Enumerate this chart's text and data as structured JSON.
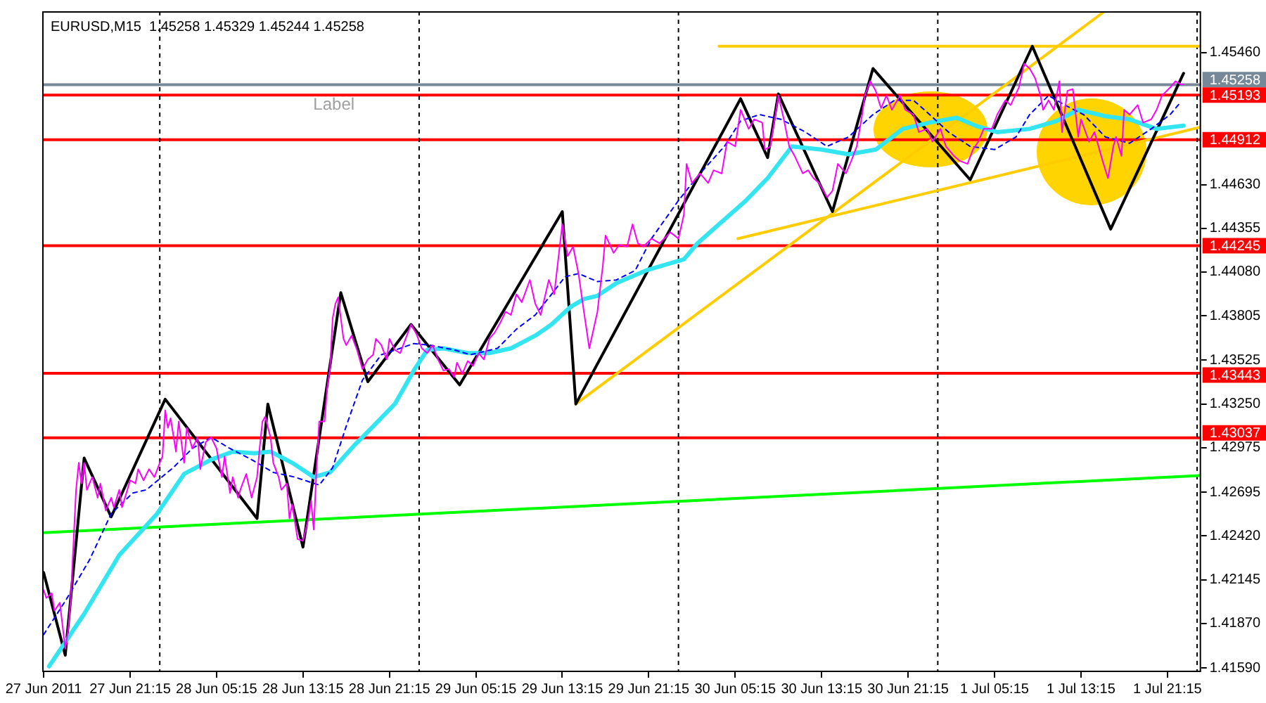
{
  "chart_data": {
    "type": "line",
    "title": "EURUSD,M15  1.45258 1.45329 1.45244 1.45258",
    "annotations": [
      "Label"
    ],
    "xlim": [
      "2011-06-27T13:07",
      "2011-07-02T00:22"
    ],
    "xticks": [
      {
        "value": "2011-06-27T13:15",
        "label": "27 Jun 2011"
      },
      {
        "value": "2011-06-27T21:15",
        "label": "27 Jun 21:15"
      },
      {
        "value": "2011-06-28T05:15",
        "label": "28 Jun 05:15"
      },
      {
        "value": "2011-06-28T13:15",
        "label": "28 Jun 13:15"
      },
      {
        "value": "2011-06-28T21:15",
        "label": "28 Jun 21:15"
      },
      {
        "value": "2011-06-29T05:15",
        "label": "29 Jun 05:15"
      },
      {
        "value": "2011-06-29T13:15",
        "label": "29 Jun 13:15"
      },
      {
        "value": "2011-06-29T21:15",
        "label": "29 Jun 21:15"
      },
      {
        "value": "2011-06-30T05:15",
        "label": "30 Jun 05:15"
      },
      {
        "value": "2011-06-30T13:15",
        "label": "30 Jun 13:15"
      },
      {
        "value": "2011-06-30T21:15",
        "label": "30 Jun 21:15"
      },
      {
        "value": "2011-07-01T05:15",
        "label": "1 Jul 05:15"
      },
      {
        "value": "2011-07-01T13:15",
        "label": "1 Jul 13:15"
      },
      {
        "value": "2011-07-01T21:15",
        "label": "1 Jul 21:15"
      }
    ],
    "ylim": [
      1.41564,
      1.4572
    ],
    "yticks": [
      {
        "value": 1.4546,
        "label": "1.45460"
      },
      {
        "value": 1.4463,
        "label": "1.44630"
      },
      1.44355,
      {
        "value": 1.4408,
        "label": "1.44080"
      },
      1.43805,
      1.43525,
      {
        "value": 1.4325,
        "label": "1.43250"
      },
      1.42975,
      1.42695,
      {
        "value": 1.4242,
        "label": "1.42420"
      },
      1.42145,
      {
        "value": 1.4187,
        "label": "1.41870"
      },
      {
        "value": 1.4159,
        "label": "1.41590"
      }
    ],
    "ref_lines": [
      {
        "axis": "y",
        "value": 1.45258,
        "label": "1.45258",
        "color": "#778899"
      },
      {
        "axis": "y",
        "value": 1.45193,
        "label": "1.45193",
        "color": "#ff0000"
      },
      {
        "axis": "y",
        "value": 1.44912,
        "label": "1.44912",
        "color": "#ff0000"
      },
      {
        "axis": "y",
        "value": 1.44245,
        "label": "1.44245",
        "color": "#ff0000"
      },
      {
        "axis": "y",
        "value": 1.43443,
        "label": "1.43443",
        "color": "#ff0000"
      },
      {
        "axis": "y",
        "value": 1.43037,
        "label": "1.43037",
        "color": "#ff0000"
      },
      {
        "axis": "x",
        "value": "2011-06-28",
        "color": "#000000",
        "line_style": "dashed"
      },
      {
        "axis": "x",
        "value": "2011-06-29",
        "color": "#000000",
        "line_style": "dashed"
      },
      {
        "axis": "x",
        "value": "2011-06-30",
        "color": "#000000",
        "line_style": "dashed"
      },
      {
        "axis": "x",
        "value": "2011-07-01",
        "color": "#000000",
        "line_style": "dashed"
      },
      {
        "axis": "x",
        "value": "2011-07-02",
        "color": "#000000",
        "line_style": "dashed"
      }
    ],
    "series": [
      {
        "color": "#ff00ff",
        "x": [
          "2011-06-27T13:15",
          "2011-06-27T13:30",
          "2011-06-27T14:00",
          "2011-06-27T14:15",
          "2011-06-27T14:45",
          "2011-06-27T15:15",
          "2011-06-27T15:30",
          "2011-06-27T15:45",
          "2011-06-27T16:00",
          "2011-06-27T16:15",
          "2011-06-27T16:30",
          "2011-06-27T16:45",
          "2011-06-27T17:00",
          "2011-06-27T17:15",
          "2011-06-27T17:45",
          "2011-06-27T18:15",
          "2011-06-27T18:30",
          "2011-06-27T19:00",
          "2011-06-27T19:30",
          "2011-06-27T19:45",
          "2011-06-27T20:15",
          "2011-06-27T20:30",
          "2011-06-27T21:00",
          "2011-06-27T21:15",
          "2011-06-27T21:45",
          "2011-06-27T22:00",
          "2011-06-27T22:30",
          "2011-06-27T23:00",
          "2011-06-27T23:30",
          "2011-06-28T00:00",
          "2011-06-28T00:15",
          "2011-06-28T00:30",
          "2011-06-28T00:45",
          "2011-06-28T01:00",
          "2011-06-28T01:30",
          "2011-06-28T01:45",
          "2011-06-28T02:15",
          "2011-06-28T02:30",
          "2011-06-28T03:00",
          "2011-06-28T03:30",
          "2011-06-28T03:45",
          "2011-06-28T04:15",
          "2011-06-28T04:45",
          "2011-06-28T05:15",
          "2011-06-28T05:45",
          "2011-06-28T06:00",
          "2011-06-28T06:30",
          "2011-06-28T06:45",
          "2011-06-28T07:15",
          "2011-06-28T07:30",
          "2011-06-28T08:00",
          "2011-06-28T08:30",
          "2011-06-28T09:00",
          "2011-06-28T09:15",
          "2011-06-28T09:30",
          "2011-06-28T09:45",
          "2011-06-28T10:15",
          "2011-06-28T10:30",
          "2011-06-28T11:00",
          "2011-06-28T11:15",
          "2011-06-28T11:45",
          "2011-06-28T12:00",
          "2011-06-28T12:15",
          "2011-06-28T12:45",
          "2011-06-28T13:15",
          "2011-06-28T13:45",
          "2011-06-28T14:00",
          "2011-06-28T14:15",
          "2011-06-28T14:30",
          "2011-06-28T14:45",
          "2011-06-28T15:15",
          "2011-06-28T15:30",
          "2011-06-28T15:45",
          "2011-06-28T16:00",
          "2011-06-28T16:15",
          "2011-06-28T16:30",
          "2011-06-28T17:00",
          "2011-06-28T17:15",
          "2011-06-28T17:45",
          "2011-06-28T18:15",
          "2011-06-28T18:45",
          "2011-06-28T19:15",
          "2011-06-28T19:45",
          "2011-06-28T20:00",
          "2011-06-28T20:30",
          "2011-06-28T21:00",
          "2011-06-28T21:15",
          "2011-06-28T21:45",
          "2011-06-28T22:15",
          "2011-06-28T22:45",
          "2011-06-28T23:15",
          "2011-06-28T23:45",
          "2011-06-29T00:15",
          "2011-06-29T00:45",
          "2011-06-29T01:15",
          "2011-06-29T01:45",
          "2011-06-29T02:15",
          "2011-06-29T02:45",
          "2011-06-29T03:15",
          "2011-06-29T03:30",
          "2011-06-29T04:00",
          "2011-06-29T04:30",
          "2011-06-29T05:00",
          "2011-06-29T05:30",
          "2011-06-29T06:00",
          "2011-06-29T06:30",
          "2011-06-29T07:00",
          "2011-06-29T07:30",
          "2011-06-29T08:00",
          "2011-06-29T08:30",
          "2011-06-29T09:00",
          "2011-06-29T09:30",
          "2011-06-29T10:15",
          "2011-06-29T10:45",
          "2011-06-29T11:15",
          "2011-06-29T12:00",
          "2011-06-29T12:30",
          "2011-06-29T13:15",
          "2011-06-29T13:45",
          "2011-06-29T14:15",
          "2011-06-29T14:45",
          "2011-06-29T15:15",
          "2011-06-29T15:45",
          "2011-06-29T16:30",
          "2011-06-29T17:00",
          "2011-06-29T17:15",
          "2011-06-29T18:00",
          "2011-06-29T18:30",
          "2011-06-29T19:15",
          "2011-06-29T19:45",
          "2011-06-29T20:15",
          "2011-06-29T20:45",
          "2011-06-29T21:30",
          "2011-06-29T22:15",
          "2011-06-29T23:15",
          "2011-06-30T00:00",
          "2011-06-30T00:30",
          "2011-06-30T00:45",
          "2011-06-30T01:15",
          "2011-06-30T02:00",
          "2011-06-30T02:45",
          "2011-06-30T03:15",
          "2011-06-30T04:00",
          "2011-06-30T04:30",
          "2011-06-30T05:15",
          "2011-06-30T05:45",
          "2011-06-30T06:30",
          "2011-06-30T07:00",
          "2011-06-30T07:45",
          "2011-06-30T08:00",
          "2011-06-30T08:30",
          "2011-06-30T09:15",
          "2011-06-30T09:45",
          "2011-06-30T10:15",
          "2011-06-30T10:45",
          "2011-06-30T11:30",
          "2011-06-30T12:00",
          "2011-06-30T12:30",
          "2011-06-30T13:00",
          "2011-06-30T13:45",
          "2011-06-30T14:15",
          "2011-06-30T14:45",
          "2011-06-30T15:30",
          "2011-06-30T16:00",
          "2011-06-30T16:30",
          "2011-06-30T17:00",
          "2011-06-30T17:15",
          "2011-06-30T17:45",
          "2011-06-30T18:15",
          "2011-06-30T18:45",
          "2011-06-30T19:15",
          "2011-06-30T19:45",
          "2011-06-30T20:30",
          "2011-06-30T21:00",
          "2011-06-30T21:45",
          "2011-06-30T22:15",
          "2011-06-30T23:00",
          "2011-06-30T23:30",
          "2011-07-01T00:15",
          "2011-07-01T00:45",
          "2011-07-01T01:30",
          "2011-07-01T02:00",
          "2011-07-01T02:45",
          "2011-07-01T03:15",
          "2011-07-01T03:45",
          "2011-07-01T04:15",
          "2011-07-01T05:00",
          "2011-07-01T05:30",
          "2011-07-01T06:15",
          "2011-07-01T06:45",
          "2011-07-01T07:30",
          "2011-07-01T08:00",
          "2011-07-01T08:30",
          "2011-07-01T09:00",
          "2011-07-01T09:30",
          "2011-07-01T09:45",
          "2011-07-01T10:15",
          "2011-07-01T10:45",
          "2011-07-01T11:15",
          "2011-07-01T11:30",
          "2011-07-01T12:00",
          "2011-07-01T12:30",
          "2011-07-01T13:00",
          "2011-07-01T13:15",
          "2011-07-01T14:00",
          "2011-07-01T14:30",
          "2011-07-01T15:15",
          "2011-07-01T15:45",
          "2011-07-01T16:15",
          "2011-07-01T16:30",
          "2011-07-01T17:00",
          "2011-07-01T17:15",
          "2011-07-01T17:45",
          "2011-07-01T18:30",
          "2011-07-01T19:00",
          "2011-07-01T19:45",
          "2011-07-01T20:15",
          "2011-07-01T20:45",
          "2011-07-01T21:30",
          "2011-07-01T22:00",
          "2011-07-01T22:30",
          "2011-07-01T22:45"
        ],
        "values": [
          1.4208,
          1.4203,
          1.4206,
          1.4195,
          1.42,
          1.4171,
          1.4182,
          1.4201,
          1.4236,
          1.4271,
          1.4288,
          1.4275,
          1.4288,
          1.4271,
          1.4279,
          1.4266,
          1.4275,
          1.4258,
          1.4266,
          1.426,
          1.4271,
          1.426,
          1.4271,
          1.4277,
          1.4275,
          1.4284,
          1.4277,
          1.4284,
          1.4279,
          1.4288,
          1.4292,
          1.4321,
          1.431,
          1.4316,
          1.4295,
          1.4314,
          1.4288,
          1.431,
          1.4297,
          1.4304,
          1.4284,
          1.4301,
          1.4304,
          1.4297,
          1.4279,
          1.4292,
          1.4269,
          1.4279,
          1.4266,
          1.4272,
          1.4281,
          1.4266,
          1.4279,
          1.4298,
          1.4314,
          1.4317,
          1.4304,
          1.4288,
          1.4279,
          1.4271,
          1.4275,
          1.4253,
          1.4262,
          1.424,
          1.4239,
          1.4253,
          1.4264,
          1.4246,
          1.4284,
          1.4314,
          1.4314,
          1.4336,
          1.4347,
          1.4379,
          1.4388,
          1.4392,
          1.4366,
          1.4362,
          1.4368,
          1.4359,
          1.4347,
          1.4353,
          1.4356,
          1.4366,
          1.4362,
          1.4353,
          1.4366,
          1.4359,
          1.4357,
          1.4366,
          1.4375,
          1.4369,
          1.436,
          1.4357,
          1.4362,
          1.4353,
          1.4346,
          1.4347,
          1.4342,
          1.4351,
          1.4344,
          1.4352,
          1.4349,
          1.4357,
          1.4353,
          1.4366,
          1.437,
          1.4376,
          1.4383,
          1.4381,
          1.4394,
          1.4389,
          1.4403,
          1.4388,
          1.4381,
          1.4403,
          1.4394,
          1.4438,
          1.4418,
          1.4424,
          1.4407,
          1.4383,
          1.436,
          1.4383,
          1.4412,
          1.4431,
          1.442,
          1.4425,
          1.4424,
          1.4438,
          1.4426,
          1.4424,
          1.4429,
          1.4426,
          1.4433,
          1.4429,
          1.4444,
          1.4476,
          1.4464,
          1.447,
          1.4464,
          1.4472,
          1.447,
          1.449,
          1.4487,
          1.451,
          1.4498,
          1.4504,
          1.4502,
          1.4485,
          1.4487,
          1.4519,
          1.4504,
          1.4487,
          1.4481,
          1.447,
          1.4472,
          1.4467,
          1.4464,
          1.4455,
          1.4459,
          1.4476,
          1.447,
          1.4478,
          1.4487,
          1.4507,
          1.4519,
          1.4528,
          1.4522,
          1.4511,
          1.4519,
          1.451,
          1.4519,
          1.451,
          1.4507,
          1.4496,
          1.4498,
          1.449,
          1.4498,
          1.4487,
          1.4481,
          1.4478,
          1.4476,
          1.4485,
          1.449,
          1.4498,
          1.4498,
          1.4507,
          1.4516,
          1.4513,
          1.4524,
          1.4539,
          1.4536,
          1.453,
          1.4519,
          1.451,
          1.4516,
          1.451,
          1.4528,
          1.4496,
          1.4522,
          1.4523,
          1.4493,
          1.4504,
          1.449,
          1.4496,
          1.4478,
          1.4467,
          1.4487,
          1.4493,
          1.4481,
          1.451,
          1.4507,
          1.4513,
          1.4502,
          1.4504,
          1.451,
          1.4519,
          1.4524,
          1.4528,
          1.4526,
          1.4526
        ]
      },
      {
        "color": "#0000ff",
        "line_style": "dashed",
        "x": [
          "2011-06-27T13:15",
          "2011-06-27T15:15",
          "2011-06-27T17:30",
          "2011-06-27T19:30",
          "2011-06-27T21:30",
          "2011-06-27T22:45",
          "2011-06-28T01:15",
          "2011-06-28T03:00",
          "2011-06-28T04:45",
          "2011-06-28T06:30",
          "2011-06-28T08:30",
          "2011-06-28T10:30",
          "2011-06-28T12:30",
          "2011-06-28T14:45",
          "2011-06-28T16:00",
          "2011-06-28T17:15",
          "2011-06-28T18:45",
          "2011-06-28T20:30",
          "2011-06-28T22:15",
          "2011-06-28T23:30",
          "2011-06-29T01:00",
          "2011-06-29T03:15",
          "2011-06-29T04:45",
          "2011-06-29T07:15",
          "2011-06-29T09:00",
          "2011-06-29T10:45",
          "2011-06-29T12:15",
          "2011-06-29T13:30",
          "2011-06-29T14:45",
          "2011-06-29T16:30",
          "2011-06-29T18:15",
          "2011-06-29T20:00",
          "2011-06-29T21:30",
          "2011-06-30T00:00",
          "2011-06-30T02:00",
          "2011-06-30T04:15",
          "2011-06-30T05:45",
          "2011-06-30T07:30",
          "2011-06-30T09:30",
          "2011-06-30T11:45",
          "2011-06-30T13:45",
          "2011-06-30T15:45",
          "2011-06-30T18:00",
          "2011-06-30T20:00",
          "2011-06-30T21:45",
          "2011-06-30T23:15",
          "2011-07-01T01:00",
          "2011-07-01T03:00",
          "2011-07-01T05:15",
          "2011-07-01T07:15",
          "2011-07-01T08:30",
          "2011-07-01T10:15",
          "2011-07-01T11:45",
          "2011-07-01T13:30",
          "2011-07-01T15:30",
          "2011-07-01T17:45",
          "2011-07-01T19:45",
          "2011-07-01T21:30",
          "2011-07-01T22:30"
        ],
        "values": [
          1.418,
          1.4201,
          1.4227,
          1.4256,
          1.4269,
          1.4271,
          1.4285,
          1.4297,
          1.4304,
          1.4297,
          1.429,
          1.4282,
          1.4279,
          1.4274,
          1.4285,
          1.4311,
          1.434,
          1.4356,
          1.436,
          1.4363,
          1.4362,
          1.4359,
          1.4356,
          1.436,
          1.4372,
          1.4381,
          1.4394,
          1.4405,
          1.4407,
          1.4402,
          1.4403,
          1.4409,
          1.4429,
          1.4453,
          1.447,
          1.4487,
          1.4503,
          1.4507,
          1.4504,
          1.4496,
          1.4487,
          1.4493,
          1.4507,
          1.4516,
          1.4516,
          1.4507,
          1.4496,
          1.4487,
          1.4485,
          1.4493,
          1.4507,
          1.4519,
          1.4513,
          1.4507,
          1.4493,
          1.4489,
          1.4498,
          1.4507,
          1.4515
        ]
      },
      {
        "color": "#33e5f0",
        "x": [
          "2011-06-27T13:45",
          "2011-06-27T17:00",
          "2011-06-27T20:15",
          "2011-06-27T23:45",
          "2011-06-28T02:15",
          "2011-06-28T04:45",
          "2011-06-28T06:45",
          "2011-06-28T08:45",
          "2011-06-28T10:15",
          "2011-06-28T12:15",
          "2011-06-28T14:15",
          "2011-06-28T15:45",
          "2011-06-28T18:00",
          "2011-06-28T19:45",
          "2011-06-28T21:45",
          "2011-06-28T23:30",
          "2011-06-29T00:45",
          "2011-06-29T02:15",
          "2011-06-29T04:30",
          "2011-06-29T06:30",
          "2011-06-29T08:30",
          "2011-06-29T10:45",
          "2011-06-29T12:15",
          "2011-06-29T14:00",
          "2011-06-29T15:15",
          "2011-06-29T16:30",
          "2011-06-29T18:15",
          "2011-06-29T21:00",
          "2011-06-30T00:30",
          "2011-06-30T01:45",
          "2011-06-30T04:15",
          "2011-06-30T06:15",
          "2011-06-30T08:15",
          "2011-06-30T10:30",
          "2011-06-30T13:15",
          "2011-06-30T15:45",
          "2011-06-30T18:15",
          "2011-06-30T20:45",
          "2011-06-30T23:15",
          "2011-07-01T01:45",
          "2011-07-01T03:30",
          "2011-07-01T05:30",
          "2011-07-01T08:30",
          "2011-07-01T11:00",
          "2011-07-01T13:00",
          "2011-07-01T15:30",
          "2011-07-01T17:45",
          "2011-07-01T20:15",
          "2011-07-01T22:45"
        ],
        "values": [
          1.416,
          1.4193,
          1.423,
          1.4256,
          1.4281,
          1.429,
          1.4295,
          1.4294,
          1.4295,
          1.4288,
          1.4279,
          1.4282,
          1.4299,
          1.4311,
          1.4325,
          1.4346,
          1.4359,
          1.436,
          1.4357,
          1.4357,
          1.436,
          1.4368,
          1.4375,
          1.4386,
          1.4391,
          1.4393,
          1.4401,
          1.4409,
          1.4416,
          1.4426,
          1.4441,
          1.4453,
          1.4467,
          1.4487,
          1.4485,
          1.4482,
          1.4485,
          1.4498,
          1.4502,
          1.4505,
          1.45,
          1.4496,
          1.4498,
          1.4503,
          1.451,
          1.4506,
          1.4504,
          1.4498,
          1.45
        ]
      },
      {
        "color": "#000000",
        "x": [
          "2011-06-27T13:15",
          "2011-06-27T15:15",
          "2011-06-27T17:00",
          "2011-06-27T19:30",
          "2011-06-28T00:30",
          "2011-06-28T09:00",
          "2011-06-28T10:00",
          "2011-06-28T13:15",
          "2011-06-28T16:45",
          "2011-06-28T19:15",
          "2011-06-28T23:15",
          "2011-06-29T03:45",
          "2011-06-29T13:15",
          "2011-06-29T14:30",
          "2011-06-30T05:45",
          "2011-06-30T08:15",
          "2011-06-30T09:15",
          "2011-06-30T14:15",
          "2011-06-30T18:00",
          "2011-07-01T03:00",
          "2011-07-01T08:45",
          "2011-07-01T16:00",
          "2011-07-01T22:45"
        ],
        "values": [
          1.4219,
          1.4167,
          1.4291,
          1.4254,
          1.4328,
          1.4253,
          1.4325,
          1.4235,
          1.4395,
          1.4339,
          1.4375,
          1.4337,
          1.4446,
          1.4325,
          1.4517,
          1.448,
          1.452,
          1.4446,
          1.4536,
          1.4466,
          1.455,
          1.4435,
          1.4533
        ]
      },
      {
        "color": "#ffcc00",
        "x": [
          "2011-06-29T14:30",
          "2011-07-01T15:15"
        ],
        "values": [
          1.4325,
          1.4571
        ]
      },
      {
        "color": "#ffcc00",
        "x": [
          "2011-06-30T05:30",
          "2011-07-02T00:15"
        ],
        "values": [
          1.4429,
          1.4499
        ]
      },
      {
        "color": "#ffcc00",
        "x": [
          "2011-06-30T03:45",
          "2011-07-02T00:15"
        ],
        "values": [
          1.455,
          1.455
        ]
      },
      {
        "color": "#00ff00",
        "x": [
          "2011-06-27T13:15",
          "2011-07-02T00:15"
        ],
        "values": [
          1.4244,
          1.428
        ]
      }
    ]
  }
}
